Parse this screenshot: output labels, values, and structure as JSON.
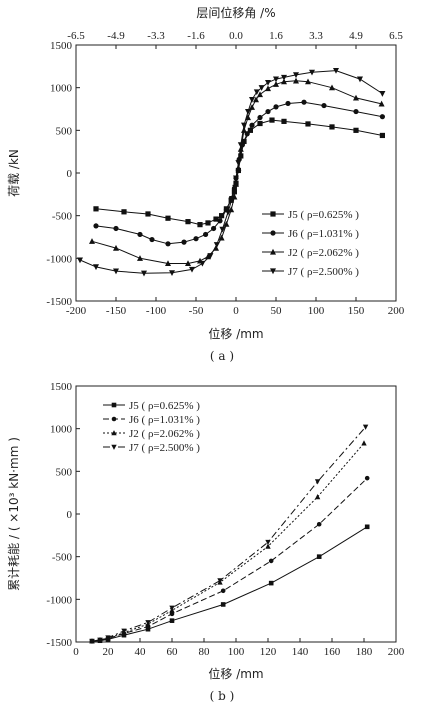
{
  "figure": {
    "caption_a": "( a )",
    "caption_b": "( b )"
  },
  "chart_data": [
    {
      "type": "line",
      "id": "a",
      "title": "",
      "xlabel": "位移 /mm",
      "ylabel": "荷载 /kN",
      "top_xlabel": "层间位移角 /%",
      "xlim": [
        -200,
        200
      ],
      "ylim": [
        -1500,
        1500
      ],
      "xticks": [
        -200,
        -150,
        -100,
        -50,
        0,
        50,
        100,
        150,
        200
      ],
      "yticks": [
        -1500,
        -1000,
        -500,
        0,
        500,
        1000,
        1500
      ],
      "top_ticks": [
        "-6.5",
        "-4.9",
        "-3.3",
        "-1.6",
        "0.0",
        "1.6",
        "3.3",
        "4.9",
        "6.5"
      ],
      "grid": false,
      "legend_position": "bottom-right",
      "series": [
        {
          "name": "J5 ( ρ=0.625% )",
          "marker": "square",
          "dash": "",
          "x": [
            -175,
            -140,
            -110,
            -85,
            -60,
            -45,
            -35,
            -25,
            -18,
            -12,
            -6,
            -2,
            0,
            3,
            6,
            10,
            18,
            30,
            45,
            60,
            90,
            120,
            150,
            183
          ],
          "y": [
            -420,
            -455,
            -480,
            -530,
            -570,
            -605,
            -585,
            -540,
            -500,
            -420,
            -320,
            -220,
            -120,
            30,
            200,
            370,
            500,
            580,
            620,
            605,
            575,
            540,
            500,
            440
          ]
        },
        {
          "name": "J6 ( ρ=1.031% )",
          "marker": "circle",
          "dash": "",
          "x": [
            -175,
            -150,
            -120,
            -105,
            -85,
            -65,
            -50,
            -38,
            -28,
            -20,
            -12,
            -6,
            -2,
            0,
            4,
            8,
            14,
            20,
            30,
            40,
            50,
            65,
            85,
            110,
            150,
            183
          ],
          "y": [
            -620,
            -650,
            -720,
            -780,
            -830,
            -810,
            -770,
            -720,
            -650,
            -560,
            -430,
            -300,
            -180,
            -60,
            160,
            330,
            460,
            560,
            650,
            720,
            775,
            815,
            830,
            790,
            720,
            660
          ]
        },
        {
          "name": "J2 ( ρ=2.062% )",
          "marker": "triangle",
          "dash": "",
          "x": [
            -180,
            -150,
            -120,
            -85,
            -60,
            -45,
            -35,
            -25,
            -18,
            -12,
            -6,
            -2,
            0,
            3,
            6,
            10,
            15,
            20,
            25,
            30,
            40,
            50,
            60,
            75,
            90,
            120,
            150,
            182
          ],
          "y": [
            -800,
            -880,
            -1000,
            -1060,
            -1060,
            -1030,
            -980,
            -880,
            -760,
            -600,
            -430,
            -280,
            -130,
            60,
            280,
            500,
            650,
            770,
            860,
            920,
            990,
            1040,
            1070,
            1080,
            1070,
            1000,
            880,
            810
          ]
        },
        {
          "name": "J7 ( ρ=2.500% )",
          "marker": "triangle-down",
          "dash": "",
          "x": [
            -195,
            -175,
            -150,
            -115,
            -80,
            -55,
            -42,
            -32,
            -24,
            -17,
            -10,
            -5,
            -1,
            0,
            3,
            6,
            10,
            15,
            20,
            26,
            32,
            40,
            50,
            60,
            75,
            95,
            125,
            155,
            183
          ],
          "y": [
            -1020,
            -1100,
            -1150,
            -1175,
            -1170,
            -1130,
            -1060,
            -970,
            -840,
            -660,
            -460,
            -300,
            -170,
            -60,
            120,
            330,
            560,
            720,
            860,
            950,
            1000,
            1060,
            1100,
            1120,
            1150,
            1180,
            1200,
            1100,
            930
          ]
        }
      ]
    },
    {
      "type": "line",
      "id": "b",
      "title": "",
      "xlabel": "位移 /mm",
      "ylabel": "累计耗能 / ( ×10³ kN·mm )",
      "xlim": [
        0,
        200
      ],
      "ylim": [
        -1500,
        1500
      ],
      "xticks": [
        0,
        20,
        40,
        60,
        80,
        100,
        120,
        140,
        160,
        180,
        200
      ],
      "yticks": [
        -1500,
        -1000,
        -500,
        0,
        500,
        1000,
        1500
      ],
      "grid": false,
      "legend_position": "top-left",
      "series": [
        {
          "name": "J5 ( ρ=0.625% )",
          "marker": "square",
          "dash": "",
          "x": [
            10,
            15,
            20,
            30,
            45,
            60,
            92,
            122,
            152,
            182
          ],
          "y": [
            -1490,
            -1485,
            -1470,
            -1420,
            -1350,
            -1250,
            -1060,
            -810,
            -500,
            -150
          ]
        },
        {
          "name": "J6 ( ρ=1.031% )",
          "marker": "circle",
          "dash": "6,3",
          "x": [
            10,
            15,
            20,
            30,
            45,
            60,
            92,
            122,
            152,
            182
          ],
          "y": [
            -1490,
            -1480,
            -1460,
            -1400,
            -1320,
            -1170,
            -900,
            -550,
            -120,
            420
          ]
        },
        {
          "name": "J2 ( ρ=2.062% )",
          "marker": "triangle",
          "dash": "2,2",
          "x": [
            10,
            15,
            20,
            30,
            45,
            60,
            90,
            120,
            151,
            180
          ],
          "y": [
            -1490,
            -1475,
            -1455,
            -1390,
            -1290,
            -1130,
            -800,
            -380,
            200,
            830
          ]
        },
        {
          "name": "J7 ( ρ=2.500% )",
          "marker": "triangle-down",
          "dash": "7,3,2,3",
          "x": [
            10,
            15,
            20,
            30,
            45,
            60,
            90,
            120,
            151,
            181
          ],
          "y": [
            -1490,
            -1475,
            -1450,
            -1370,
            -1270,
            -1100,
            -780,
            -330,
            380,
            1020
          ]
        }
      ]
    }
  ]
}
